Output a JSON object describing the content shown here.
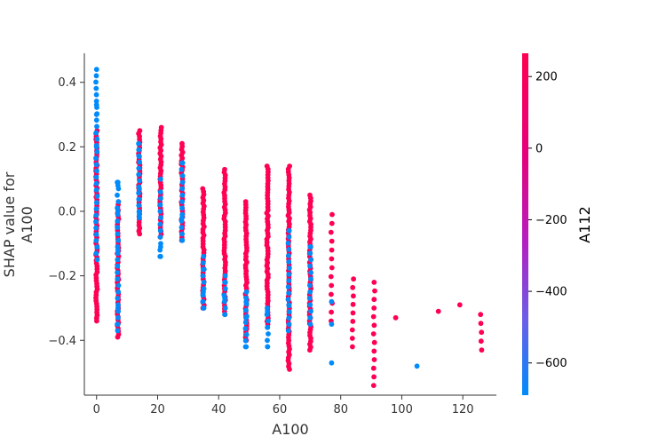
{
  "chart_data": {
    "type": "scatter",
    "title": "",
    "xlabel": "A100",
    "ylabel_lines": [
      "SHAP value for",
      "A100"
    ],
    "xlim": [
      -4,
      131
    ],
    "ylim": [
      -0.57,
      0.49
    ],
    "xticks": [
      0,
      20,
      40,
      60,
      80,
      100,
      120
    ],
    "yticks": [
      -0.4,
      -0.2,
      0.0,
      0.2,
      0.4
    ],
    "xtick_labels": [
      "0",
      "20",
      "40",
      "60",
      "80",
      "100",
      "120"
    ],
    "ytick_labels": [
      "−0.4",
      "−0.2",
      "0.0",
      "0.2",
      "0.4"
    ],
    "grid": false,
    "colorbar": {
      "label": "A112",
      "range": [
        -690,
        265
      ],
      "ticks": [
        200,
        0,
        -200,
        -400,
        -600
      ],
      "tick_labels": [
        "200",
        "0",
        "−200",
        "−400",
        "−600"
      ],
      "colors": [
        "#ff0052",
        "#c30bb0",
        "#7c4be0",
        "#008bfb"
      ]
    },
    "colors": {
      "high": "#ff0052",
      "low": "#008bfb"
    },
    "columns": [
      {
        "x": 0,
        "red": [
          -0.34,
          0.25
        ],
        "blue": [
          -0.15,
          0.44
        ],
        "blue_extra": [
          0.33,
          0.3,
          0.2
        ]
      },
      {
        "x": 7,
        "red": [
          -0.39,
          0.03
        ],
        "blue": [
          -0.37,
          0.09
        ],
        "blue_extra": [
          0.09,
          0.08,
          -0.35,
          -0.3,
          -0.12,
          0.0
        ]
      },
      {
        "x": 14,
        "red": [
          -0.07,
          0.25
        ],
        "blue": [
          -0.02,
          0.21
        ],
        "blue_extra": [
          0.17,
          0.07,
          -0.01
        ]
      },
      {
        "x": 21,
        "red": [
          -0.08,
          0.26
        ],
        "blue": [
          -0.14,
          0.06
        ],
        "blue_extra": [
          -0.14,
          -0.11,
          -0.06,
          0.1
        ]
      },
      {
        "x": 28,
        "red": [
          -0.09,
          0.21
        ],
        "blue": [
          -0.09,
          0.15
        ],
        "blue_extra": [
          0.15,
          -0.02,
          -0.09
        ]
      },
      {
        "x": 35,
        "red": [
          -0.3,
          0.07
        ],
        "blue": [
          -0.3,
          -0.14
        ],
        "blue_extra": [
          -0.3,
          -0.25,
          -0.18
        ]
      },
      {
        "x": 42,
        "red": [
          -0.32,
          0.13
        ],
        "blue": [
          -0.32,
          -0.2
        ],
        "blue_extra": [
          -0.32,
          -0.27,
          -0.22
        ]
      },
      {
        "x": 49,
        "red": [
          -0.4,
          0.03
        ],
        "blue": [
          -0.42,
          -0.25
        ],
        "blue_extra": [
          -0.42,
          -0.33,
          -0.28
        ]
      },
      {
        "x": 56,
        "red": [
          -0.35,
          0.14
        ],
        "blue": [
          -0.42,
          -0.3
        ],
        "blue_extra": [
          -0.42,
          -0.36,
          -0.31
        ]
      },
      {
        "x": 63,
        "red": [
          -0.49,
          0.14
        ],
        "blue": [
          -0.37,
          -0.06
        ],
        "blue_extra": [
          -0.06,
          -0.35,
          -0.29
        ]
      },
      {
        "x": 70,
        "red": [
          -0.43,
          0.05
        ],
        "blue": [
          -0.35,
          -0.11
        ],
        "blue_extra": [
          -0.11,
          -0.33
        ]
      },
      {
        "x": 77,
        "red": [
          -0.34,
          -0.01
        ],
        "blue": [
          -0.47,
          -0.28
        ],
        "blue_extra": [
          -0.47,
          -0.35,
          -0.28
        ]
      },
      {
        "x": 84,
        "red": [
          -0.42,
          -0.21
        ]
      },
      {
        "x": 91,
        "red": [
          -0.54,
          -0.22
        ]
      },
      {
        "x": 98,
        "red": [
          -0.33,
          -0.33
        ]
      },
      {
        "x": 105,
        "blue": [
          -0.48,
          -0.48
        ],
        "blue_extra": [
          -0.48
        ]
      },
      {
        "x": 112,
        "red": [
          -0.31,
          -0.31
        ]
      },
      {
        "x": 119,
        "red": [
          -0.29,
          -0.29
        ]
      },
      {
        "x": 126,
        "red": [
          -0.43,
          -0.32
        ]
      }
    ]
  }
}
